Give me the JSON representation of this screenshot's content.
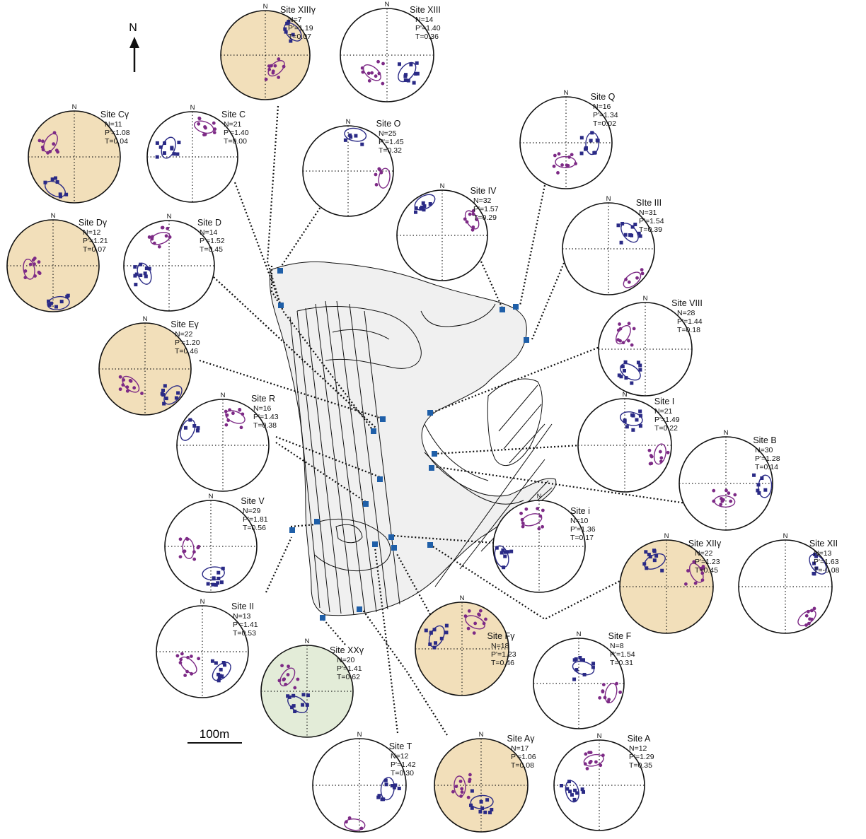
{
  "north_label": "N",
  "scale_label": "100m",
  "net_north_label": "N",
  "colors": {
    "tan_fill": "#f2dfba",
    "green_fill": "#e3ecd8",
    "white_fill": "#ffffff",
    "k1_squares": "#2a2a86",
    "k3_circles": "#7d2a86",
    "site_marker": "#1f5fa8",
    "pluton_fill": "#f0f0f0"
  },
  "sites": [
    {
      "id": "xiiig",
      "title": "Site XIIIγ",
      "N": "N=7",
      "P": "P'=1.19",
      "T": "T=0.07",
      "fill": "tan"
    },
    {
      "id": "xiii",
      "title": "Site XIII",
      "N": "N=14",
      "P": "P'=1.40",
      "T": "T=0.36",
      "fill": "white"
    },
    {
      "id": "cg",
      "title": "Site Cγ",
      "N": "N=11",
      "P": "P'=1.08",
      "T": "T=0.04",
      "fill": "tan"
    },
    {
      "id": "c",
      "title": "Site C",
      "N": "N=21",
      "P": "P'=1.40",
      "T": "T=0.00",
      "fill": "white"
    },
    {
      "id": "o",
      "title": "Site O",
      "N": "N=25",
      "P": "P'=1.45",
      "T": "T=0.32",
      "fill": "white"
    },
    {
      "id": "q",
      "title": "Site Q",
      "N": "N=16",
      "P": "P'=1.34",
      "T": "T=0.02",
      "fill": "white"
    },
    {
      "id": "dg",
      "title": "Site Dγ",
      "N": "N=12",
      "P": "P'=1.21",
      "T": "T=0.07",
      "fill": "tan"
    },
    {
      "id": "d",
      "title": "Site D",
      "N": "N=14",
      "P": "P'=1.52",
      "T": "T=0.45",
      "fill": "white"
    },
    {
      "id": "iv",
      "title": "Site IV",
      "N": "N=32",
      "P": "P'=1.57",
      "T": "T=0.29",
      "fill": "white"
    },
    {
      "id": "iii",
      "title": "SIte III",
      "N": "N=31",
      "P": "P'=1.54",
      "T": "T=0.39",
      "fill": "white"
    },
    {
      "id": "eg",
      "title": "Site Eγ",
      "N": "N=22",
      "P": "P'=1.20",
      "T": "T=0.46",
      "fill": "tan"
    },
    {
      "id": "viii",
      "title": "Site VIII",
      "N": "N=28",
      "P": "P'=1.44",
      "T": "T=0.18",
      "fill": "white"
    },
    {
      "id": "r",
      "title": "Site R",
      "N": "N=16",
      "P": "P'=1.43",
      "T": "T=0.38",
      "fill": "white"
    },
    {
      "id": "i_cap",
      "title": "Site I",
      "N": "N=21",
      "P": "P'=1.49",
      "T": "T=0.22",
      "fill": "white"
    },
    {
      "id": "b",
      "title": "Site B",
      "N": "N=30",
      "P": "P'=1.28",
      "T": "T=0.14",
      "fill": "white"
    },
    {
      "id": "v",
      "title": "Site V",
      "N": "N=29",
      "P": "P'=1.81",
      "T": "T=0.56",
      "fill": "white"
    },
    {
      "id": "i_low",
      "title": "Site i",
      "N": "N=10",
      "P": "P'=1.36",
      "T": "T=0.17",
      "fill": "white"
    },
    {
      "id": "xiig",
      "title": "Site XIIγ",
      "N": "N=22",
      "P": "P'=1.23",
      "T": "T=0.45",
      "fill": "tan"
    },
    {
      "id": "xii",
      "title": "Site XII",
      "N": "N=13",
      "P": "P'=1.63",
      "T": "T=-0.08",
      "fill": "white"
    },
    {
      "id": "ii",
      "title": "Site II",
      "N": "N=13",
      "P": "P'=1.41",
      "T": "T=0.53",
      "fill": "white"
    },
    {
      "id": "xxg",
      "title": "Site XXγ",
      "N": "N=20",
      "P": "P'=1.41",
      "T": "T=0.62",
      "fill": "green"
    },
    {
      "id": "fg",
      "title": "Site Fγ",
      "N": "N=18",
      "P": "P'=1.23",
      "T": "T=0.46",
      "fill": "tan"
    },
    {
      "id": "f",
      "title": "Site F",
      "N": "N=8",
      "P": "P'=1.54",
      "T": "T=0.31",
      "fill": "white"
    },
    {
      "id": "t",
      "title": "Site T",
      "N": "N=12",
      "P": "P'=1.42",
      "T": "T=0.30",
      "fill": "white"
    },
    {
      "id": "ag",
      "title": "Site Aγ",
      "N": "N=17",
      "P": "P'=1.06",
      "T": "T=0.08",
      "fill": "tan"
    },
    {
      "id": "a",
      "title": "Site A",
      "N": "N=12",
      "P": "P'=1.29",
      "T": "T=0.35",
      "fill": "white"
    }
  ]
}
